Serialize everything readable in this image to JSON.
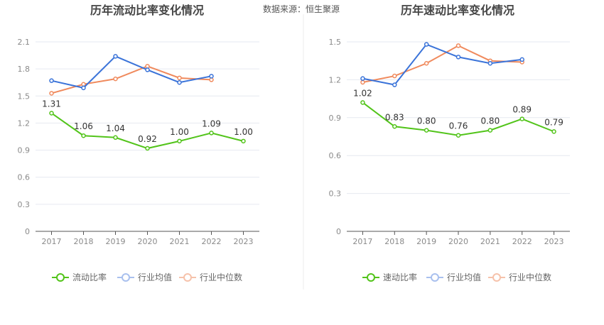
{
  "source_text": "数据来源：恒生聚源",
  "colors": {
    "company": "#52c41a",
    "industry_avg": "#3a73d9",
    "industry_median": "#f08a5d",
    "grid": "#e6e9f0",
    "axis": "#555555"
  },
  "legend": {
    "company_current": "流动比率",
    "company_quick": "速动比率",
    "industry_avg": "行业均值",
    "industry_median": "行业中位数"
  },
  "chart_data": [
    {
      "type": "line",
      "title": "历年流动比率变化情况",
      "categories": [
        "2017",
        "2018",
        "2019",
        "2020",
        "2021",
        "2022",
        "2023"
      ],
      "ylim": [
        0,
        2.1
      ],
      "yticks": [
        "0",
        "0.3",
        "0.6",
        "0.9",
        "1.2",
        "1.5",
        "1.8",
        "2.1"
      ],
      "series": [
        {
          "name": "流动比率",
          "values": [
            1.31,
            1.06,
            1.04,
            0.92,
            1.0,
            1.09,
            1.0
          ],
          "labels": [
            "1.31",
            "1.06",
            "1.04",
            "0.92",
            "1.00",
            "1.09",
            "1.00"
          ]
        },
        {
          "name": "行业均值",
          "values": [
            1.67,
            1.59,
            1.94,
            1.79,
            1.65,
            1.72,
            null
          ]
        },
        {
          "name": "行业中位数",
          "values": [
            1.53,
            1.63,
            1.69,
            1.83,
            1.7,
            1.68,
            null
          ]
        }
      ]
    },
    {
      "type": "line",
      "title": "历年速动比率变化情况",
      "categories": [
        "2017",
        "2018",
        "2019",
        "2020",
        "2021",
        "2022",
        "2023"
      ],
      "ylim": [
        0,
        1.5
      ],
      "yticks": [
        "0",
        "0.3",
        "0.6",
        "0.9",
        "1.2",
        "1.5"
      ],
      "series": [
        {
          "name": "速动比率",
          "values": [
            1.02,
            0.83,
            0.8,
            0.76,
            0.8,
            0.89,
            0.79
          ],
          "labels": [
            "1.02",
            "0.83",
            "0.80",
            "0.76",
            "0.80",
            "0.89",
            "0.79"
          ]
        },
        {
          "name": "行业均值",
          "values": [
            1.21,
            1.16,
            1.48,
            1.38,
            1.33,
            1.36,
            null
          ]
        },
        {
          "name": "行业中位数",
          "values": [
            1.18,
            1.23,
            1.33,
            1.47,
            1.35,
            1.34,
            null
          ]
        }
      ]
    }
  ]
}
